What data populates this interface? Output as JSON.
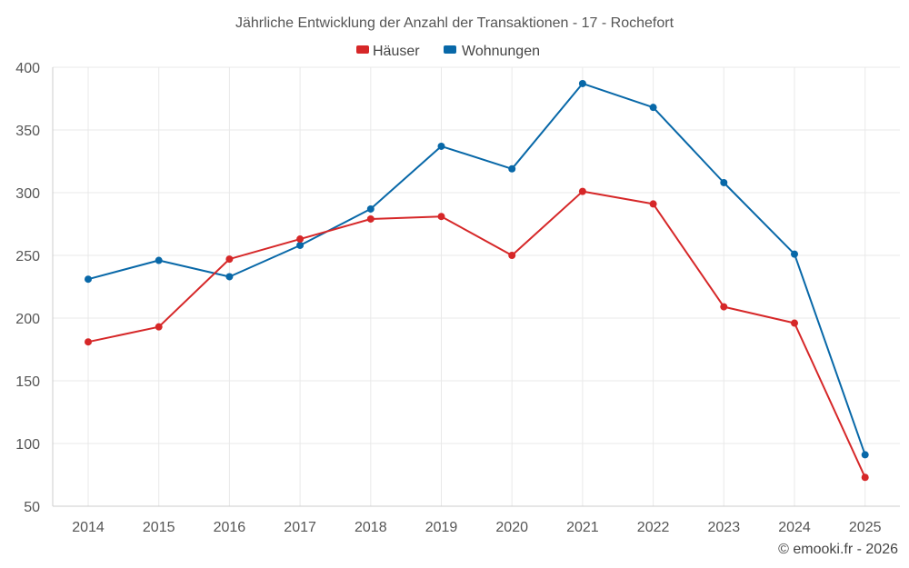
{
  "chart_data": {
    "type": "line",
    "title": "Jährliche Entwicklung der Anzahl der Transaktionen - 17 - Rochefort",
    "xlabel": "",
    "ylabel": "",
    "categories": [
      "2014",
      "2015",
      "2016",
      "2017",
      "2018",
      "2019",
      "2020",
      "2021",
      "2022",
      "2023",
      "2024",
      "2025"
    ],
    "ylim": [
      50,
      400
    ],
    "yticks": [
      50,
      100,
      150,
      200,
      250,
      300,
      350,
      400
    ],
    "grid": true,
    "legend_position": "top-center",
    "series": [
      {
        "name": "Häuser",
        "color": "#d62728",
        "values": [
          181,
          193,
          247,
          263,
          279,
          281,
          250,
          301,
          291,
          209,
          196,
          73
        ]
      },
      {
        "name": "Wohnungen",
        "color": "#0868a8",
        "values": [
          231,
          246,
          233,
          258,
          287,
          337,
          319,
          387,
          368,
          308,
          251,
          91
        ]
      }
    ]
  },
  "credit": "© emooki.fr - 2026"
}
